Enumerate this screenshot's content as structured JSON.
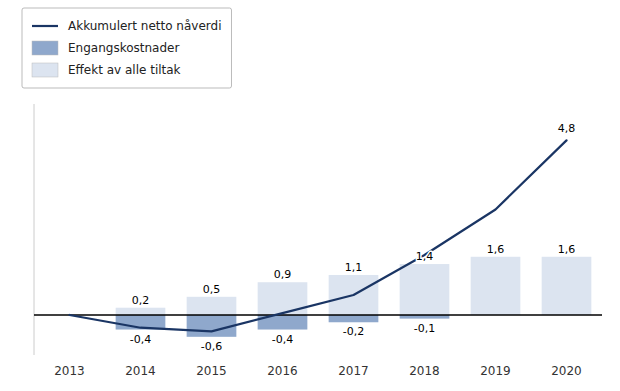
{
  "chart_data": {
    "type": "bar",
    "categories": [
      "2013",
      "2014",
      "2015",
      "2016",
      "2017",
      "2018",
      "2019",
      "2020"
    ],
    "series": [
      {
        "name": "Akkumulert netto nåverdi",
        "type": "line",
        "color": "#1a3564",
        "values": [
          0.0,
          -0.35,
          -0.45,
          0.05,
          0.55,
          1.65,
          2.9,
          4.8
        ],
        "value_labels": [
          null,
          null,
          null,
          null,
          null,
          null,
          null,
          "4,8"
        ]
      },
      {
        "name": "Engangskostnader",
        "type": "bar",
        "color": "#8fa8cc",
        "values": [
          0.0,
          -0.4,
          -0.6,
          -0.4,
          -0.2,
          -0.1,
          0.0,
          0.0
        ],
        "value_labels": [
          null,
          "-0,4",
          "-0,6",
          "-0,4",
          "-0,2",
          "-0,1",
          null,
          null
        ]
      },
      {
        "name": "Effekt av alle tiltak",
        "type": "bar",
        "color": "#dce4f0",
        "values": [
          0.0,
          0.2,
          0.5,
          0.9,
          1.1,
          1.4,
          1.6,
          1.6
        ],
        "value_labels": [
          null,
          "0,2",
          "0,5",
          "0,9",
          "1,1",
          "1,4",
          "1,6",
          "1,6"
        ]
      }
    ],
    "ylim": [
      -1.1,
      5.8
    ],
    "tick_labels": "x",
    "data_labels": true,
    "legend": "top",
    "grid": false
  }
}
